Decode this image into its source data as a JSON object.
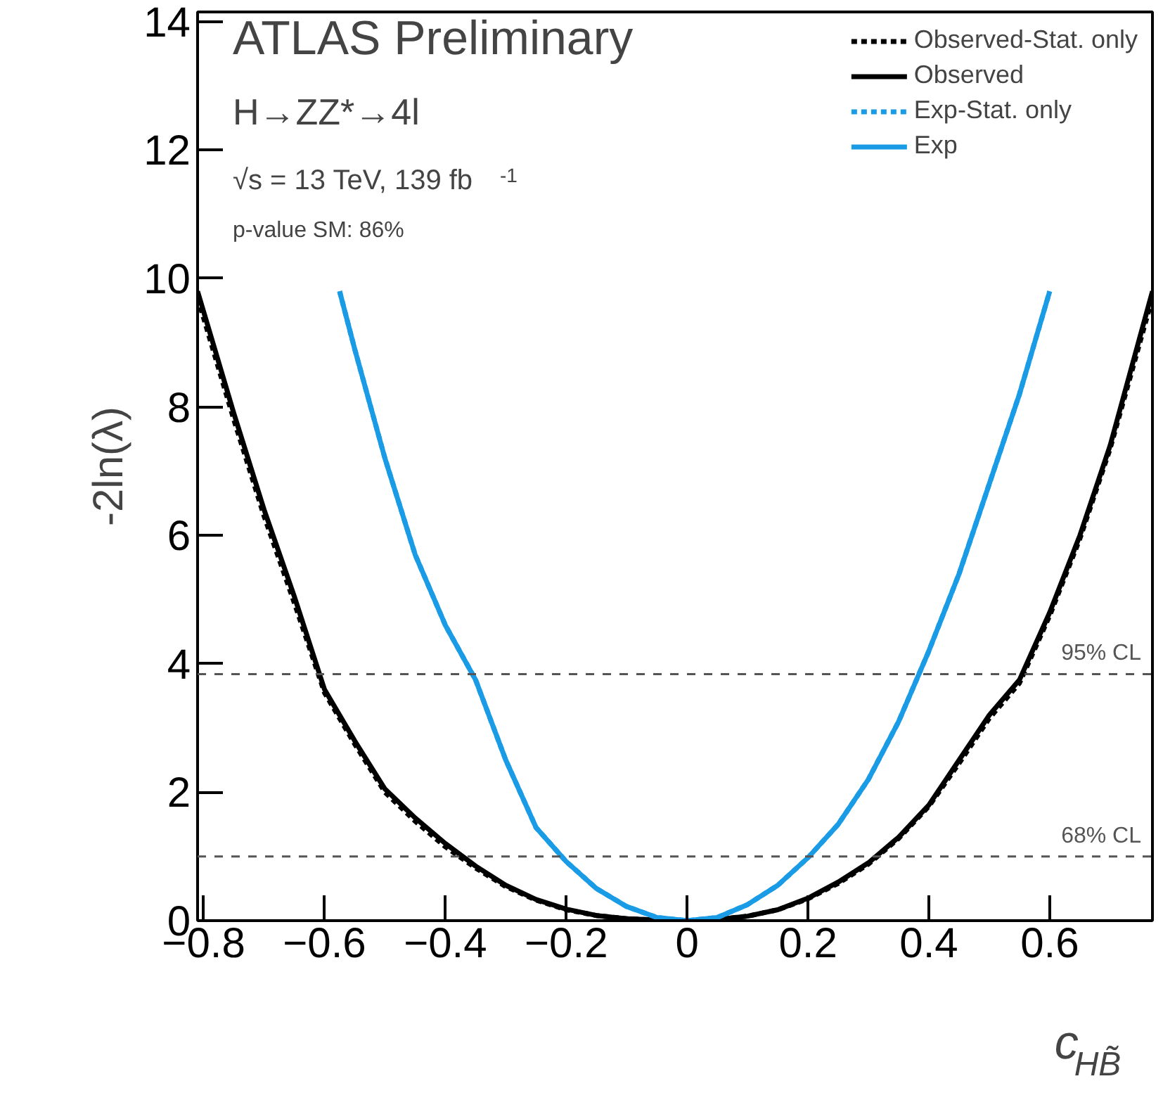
{
  "chart_data": {
    "type": "line",
    "xlabel": "c$_{HB̃}$",
    "ylabel": "-2ln(λ)",
    "xlim": [
      -0.81,
      0.77
    ],
    "ylim": [
      0,
      14.15
    ],
    "xticks": [
      {
        "value": -0.8,
        "label": "−0.8"
      },
      {
        "value": -0.6,
        "label": "−0.6"
      },
      {
        "value": -0.4,
        "label": "−0.4"
      },
      {
        "value": -0.2,
        "label": "−0.2"
      },
      0,
      0.2,
      0.4,
      0.6
    ],
    "yticks": [
      0,
      2,
      4,
      6,
      8,
      10,
      12,
      14
    ],
    "grid": false,
    "legend": "top right",
    "annotations": [
      "ATLAS Preliminary",
      "H→ZZ*→4l",
      "√s = 13 TeV, 139 fb$^{-1}$",
      "p-value SM: 86%"
    ],
    "ref_lines": [
      {
        "axis": "y",
        "value": 3.84,
        "label": "95% CL",
        "color": "#555555",
        "line_style": "dashed"
      },
      {
        "axis": "y",
        "value": 1,
        "label": "68% CL",
        "color": "#555555",
        "line_style": "dashed"
      }
    ],
    "series": [
      {
        "name": "Observed-Stat. only",
        "color": "#000000",
        "line_style": "dotted",
        "x": [
          -0.81,
          -0.75,
          -0.7,
          -0.65,
          -0.6,
          -0.55,
          -0.5,
          -0.45,
          -0.4,
          -0.35,
          -0.3,
          -0.25,
          -0.2,
          -0.15,
          -0.1,
          -0.05,
          0,
          0.05,
          0.1,
          0.15,
          0.2,
          0.25,
          0.3,
          0.35,
          0.4,
          0.45,
          0.5,
          0.55,
          0.6,
          0.65,
          0.7,
          0.77
        ],
        "values": [
          9.7,
          7.8,
          6.3,
          4.95,
          3.55,
          2.75,
          2.0,
          1.55,
          1.15,
          0.82,
          0.53,
          0.32,
          0.17,
          0.08,
          0.03,
          0.01,
          0,
          0.02,
          0.07,
          0.17,
          0.34,
          0.58,
          0.88,
          1.28,
          1.78,
          2.45,
          3.15,
          3.7,
          4.75,
          5.95,
          7.35,
          9.7
        ]
      },
      {
        "name": "Observed",
        "color": "#000000",
        "line_style": "solid",
        "x": [
          -0.81,
          -0.75,
          -0.7,
          -0.65,
          -0.6,
          -0.55,
          -0.5,
          -0.45,
          -0.4,
          -0.35,
          -0.3,
          -0.25,
          -0.2,
          -0.15,
          -0.1,
          -0.05,
          0,
          0.05,
          0.1,
          0.15,
          0.2,
          0.25,
          0.3,
          0.35,
          0.4,
          0.45,
          0.5,
          0.55,
          0.6,
          0.65,
          0.7,
          0.77
        ],
        "values": [
          9.8,
          7.9,
          6.4,
          5.05,
          3.6,
          2.8,
          2.05,
          1.6,
          1.2,
          0.85,
          0.55,
          0.33,
          0.18,
          0.08,
          0.03,
          0.01,
          0,
          0.02,
          0.07,
          0.17,
          0.35,
          0.6,
          0.9,
          1.3,
          1.8,
          2.5,
          3.2,
          3.75,
          4.8,
          6.0,
          7.4,
          9.8
        ]
      },
      {
        "name": "Exp-Stat. only",
        "color": "#1a9be6",
        "line_style": "dotted",
        "x": [
          -0.575,
          -0.55,
          -0.5,
          -0.45,
          -0.4,
          -0.35,
          -0.3,
          -0.25,
          -0.2,
          -0.15,
          -0.1,
          -0.05,
          0,
          0.05,
          0.1,
          0.15,
          0.2,
          0.25,
          0.3,
          0.35,
          0.4,
          0.45,
          0.5,
          0.55,
          0.6
        ],
        "values": [
          9.8,
          8.9,
          7.2,
          5.7,
          4.6,
          3.75,
          2.5,
          1.45,
          0.92,
          0.5,
          0.22,
          0.05,
          0,
          0.05,
          0.25,
          0.55,
          0.98,
          1.5,
          2.2,
          3.1,
          4.2,
          5.4,
          6.8,
          8.2,
          9.8
        ]
      },
      {
        "name": "Exp",
        "color": "#1a9be6",
        "line_style": "solid",
        "x": [
          -0.575,
          -0.55,
          -0.5,
          -0.45,
          -0.4,
          -0.35,
          -0.3,
          -0.25,
          -0.2,
          -0.15,
          -0.1,
          -0.05,
          0,
          0.05,
          0.1,
          0.15,
          0.2,
          0.25,
          0.3,
          0.35,
          0.4,
          0.45,
          0.5,
          0.55,
          0.6
        ],
        "values": [
          9.8,
          8.9,
          7.2,
          5.7,
          4.6,
          3.75,
          2.5,
          1.45,
          0.92,
          0.5,
          0.22,
          0.05,
          0,
          0.05,
          0.25,
          0.55,
          0.98,
          1.5,
          2.2,
          3.1,
          4.2,
          5.4,
          6.8,
          8.2,
          9.8
        ]
      }
    ]
  }
}
